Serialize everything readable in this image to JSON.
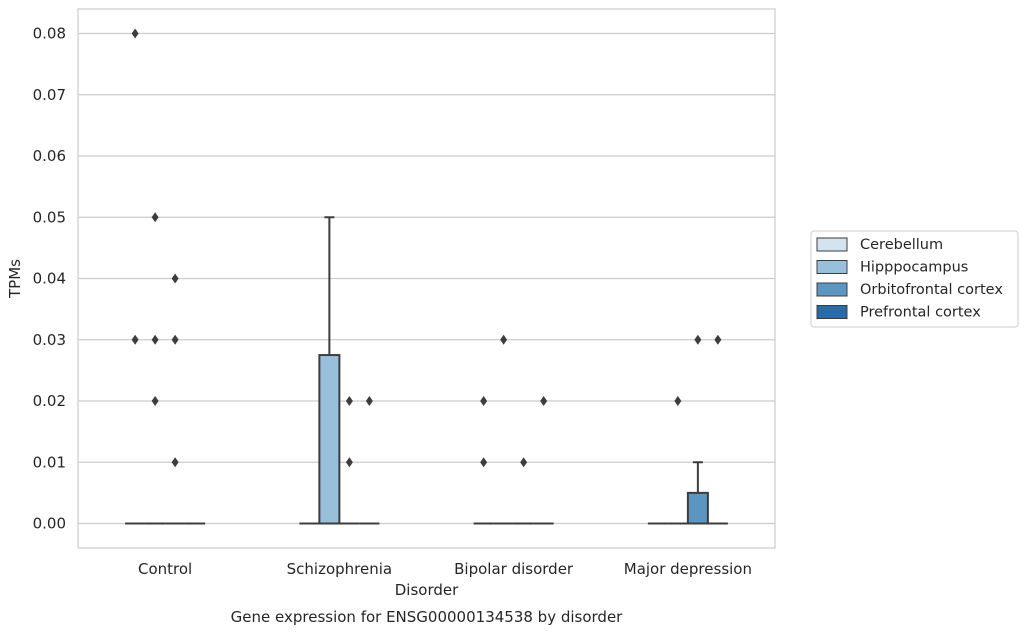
{
  "chart_data": {
    "type": "box",
    "title": "",
    "caption": "Gene expression for ENSG00000134538 by disorder",
    "xlabel": "Disorder",
    "ylabel": "TPMs",
    "categories": [
      "Control",
      "Schizophrenia",
      "Bipolar disorder",
      "Major depression"
    ],
    "ylim": [
      -0.004,
      0.084
    ],
    "yticks": [
      "0.00",
      "0.01",
      "0.02",
      "0.03",
      "0.04",
      "0.05",
      "0.06",
      "0.07",
      "0.08"
    ],
    "grid": "horizontal",
    "legend_position": "right",
    "series": [
      {
        "name": "Cerebellum",
        "color": "#d4e3f0",
        "boxes": [
          {
            "min": 0,
            "q1": 0,
            "median": 0,
            "q3": 0,
            "max": 0,
            "outliers": [
              0.03,
              0.08
            ]
          },
          {
            "min": 0,
            "q1": 0,
            "median": 0,
            "q3": 0,
            "max": 0,
            "outliers": []
          },
          {
            "min": 0,
            "q1": 0,
            "median": 0,
            "q3": 0,
            "max": 0,
            "outliers": [
              0.01,
              0.02
            ]
          },
          {
            "min": 0,
            "q1": 0,
            "median": 0,
            "q3": 0,
            "max": 0,
            "outliers": []
          }
        ]
      },
      {
        "name": "Hipppocampus",
        "color": "#99c0db",
        "boxes": [
          {
            "min": 0,
            "q1": 0,
            "median": 0,
            "q3": 0,
            "max": 0,
            "outliers": [
              0.02,
              0.03,
              0.05
            ]
          },
          {
            "min": 0,
            "q1": 0,
            "median": 0,
            "q3": 0.0275,
            "max": 0.05,
            "outliers": []
          },
          {
            "min": 0,
            "q1": 0,
            "median": 0,
            "q3": 0,
            "max": 0,
            "outliers": [
              0.03
            ]
          },
          {
            "min": 0,
            "q1": 0,
            "median": 0,
            "q3": 0,
            "max": 0,
            "outliers": [
              0.02
            ]
          }
        ]
      },
      {
        "name": "Orbitofrontal cortex",
        "color": "#5b96c2",
        "boxes": [
          {
            "min": 0,
            "q1": 0,
            "median": 0,
            "q3": 0,
            "max": 0,
            "outliers": [
              0.01,
              0.03,
              0.04
            ]
          },
          {
            "min": 0,
            "q1": 0,
            "median": 0,
            "q3": 0,
            "max": 0,
            "outliers": [
              0.01,
              0.02
            ]
          },
          {
            "min": 0,
            "q1": 0,
            "median": 0,
            "q3": 0,
            "max": 0,
            "outliers": [
              0.01
            ]
          },
          {
            "min": 0,
            "q1": 0,
            "median": 0,
            "q3": 0.005,
            "max": 0.01,
            "outliers": [
              0.03
            ]
          }
        ]
      },
      {
        "name": "Prefrontal cortex",
        "color": "#2a6aa6",
        "boxes": [
          {
            "min": 0,
            "q1": 0,
            "median": 0,
            "q3": 0,
            "max": 0,
            "outliers": []
          },
          {
            "min": 0,
            "q1": 0,
            "median": 0,
            "q3": 0,
            "max": 0,
            "outliers": [
              0.02
            ]
          },
          {
            "min": 0,
            "q1": 0,
            "median": 0,
            "q3": 0,
            "max": 0,
            "outliers": [
              0.02
            ]
          },
          {
            "min": 0,
            "q1": 0,
            "median": 0,
            "q3": 0,
            "max": 0,
            "outliers": [
              0.03
            ]
          }
        ]
      }
    ]
  }
}
